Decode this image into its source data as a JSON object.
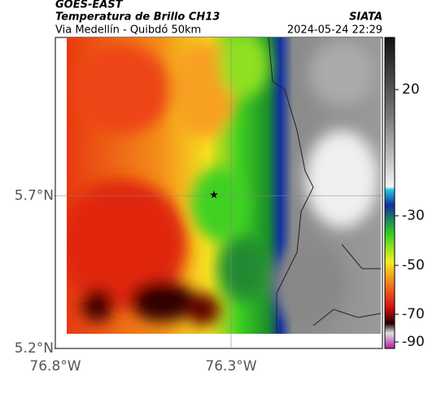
{
  "header": {
    "title": "GOES-EAST",
    "subtitle": "Temperatura de Brillo CH13",
    "region": "Via Medellín - Quibdó 50km",
    "source": "SIATA",
    "datetime": "2024-05-24 22:29"
  },
  "map": {
    "xlim": [
      -76.8,
      -75.87
    ],
    "ylim": [
      5.2,
      6.22
    ],
    "yticks": [
      {
        "value": 5.7,
        "label": "5.7°N"
      },
      {
        "value": 5.2,
        "label": "5.2°N"
      }
    ],
    "xticks": [
      {
        "value": -76.8,
        "label": "76.8°W"
      },
      {
        "value": -76.3,
        "label": "76.3°W"
      }
    ],
    "grid": true
  },
  "colorbar": {
    "ticks": [
      20,
      -30,
      -50,
      -70,
      -90
    ]
  }
}
